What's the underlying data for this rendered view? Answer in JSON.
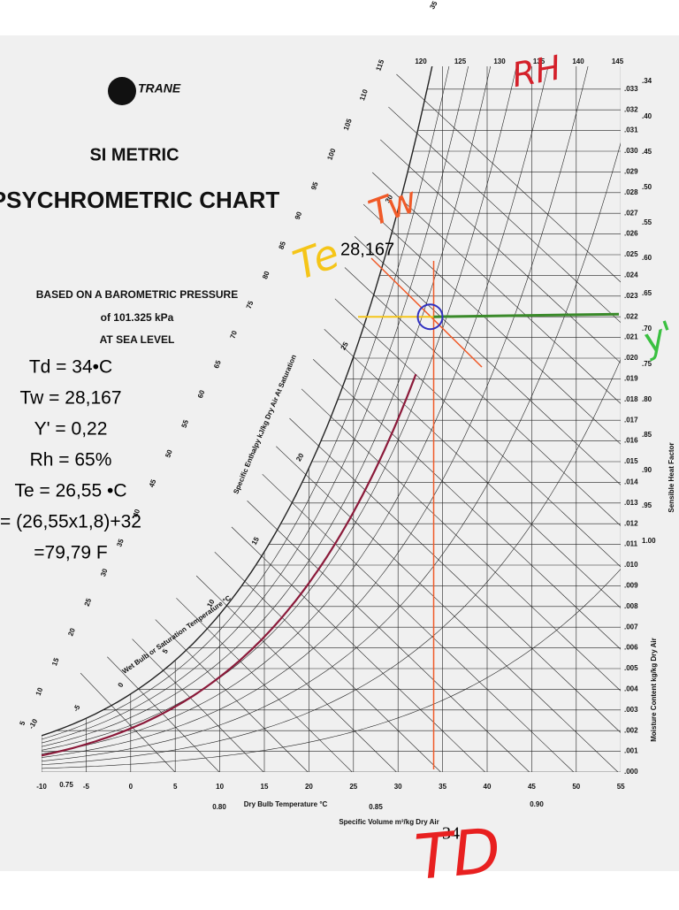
{
  "header": {
    "brand": "TRANE",
    "subtitle": "SI METRIC",
    "title": "PSYCHROMETRIC CHART",
    "pressure_note": [
      "BASED ON A BAROMETRIC PRESSURE",
      "of 101.325 kPa",
      "AT SEA LEVEL"
    ]
  },
  "notes": [
    "Td = 34•C",
    "Tw = 28,167",
    "Y' = 0,22",
    "Rh = 65%",
    "Te = 26,55 •C",
    "= (26,55x1,8)+32",
    "=79,79 F"
  ],
  "axes": {
    "dry_bulb_title": "Dry Bulb Temperature °C",
    "dry_bulb_ticks": [
      "-10",
      "-5",
      "0",
      "5",
      "10",
      "15",
      "20",
      "25",
      "30",
      "35",
      "40",
      "45",
      "50",
      "55"
    ],
    "moisture_title": "Moisture Content kg/kg Dry Air",
    "moisture_ticks": [
      ".000",
      ".001",
      ".002",
      ".003",
      ".004",
      ".005",
      ".006",
      ".007",
      ".008",
      ".009",
      ".010",
      ".011",
      ".012",
      ".013",
      ".014",
      ".015",
      ".016",
      ".017",
      ".018",
      ".019",
      ".020",
      ".021",
      ".022",
      ".023",
      ".024",
      ".025",
      ".026",
      ".027",
      ".028",
      ".029",
      ".030",
      ".031",
      ".032",
      ".033"
    ],
    "shf_title": "Sensible Heat Factor",
    "shf_ticks": [
      ".34",
      ".40",
      ".45",
      ".50",
      ".55",
      ".60",
      ".65",
      ".70",
      ".75",
      ".80",
      ".85",
      ".90",
      ".95",
      "1.00"
    ],
    "enthalpy_top": [
      "120",
      "125",
      "130",
      "135",
      "140",
      "145"
    ],
    "enthalpy_title": "Specific Enthalpy kJ/kg Dry Air At Saturation",
    "enthalpy_ticks": [
      "5",
      "10",
      "15",
      "20",
      "25",
      "30",
      "35",
      "40",
      "45",
      "50",
      "55",
      "60",
      "65",
      "70",
      "75",
      "80",
      "85",
      "90",
      "95",
      "100",
      "105",
      "110",
      "115"
    ],
    "wet_bulb_title": "Wet Bulb or Saturation Temperature °C",
    "wet_bulb_ticks": [
      "-10",
      "-5",
      "0",
      "5",
      "10",
      "15",
      "20",
      "25",
      "30",
      "35"
    ],
    "volume_title": "Specific Volume m³/kg Dry Air",
    "volume_ticks": [
      "0.75",
      "0.80",
      "0.85",
      "0.90"
    ]
  },
  "annotations": {
    "te": "Te",
    "tw": "Tw",
    "rh": "RH",
    "y": "y'",
    "tw_value": "28,167",
    "td_value": "34",
    "td": "TD"
  }
}
